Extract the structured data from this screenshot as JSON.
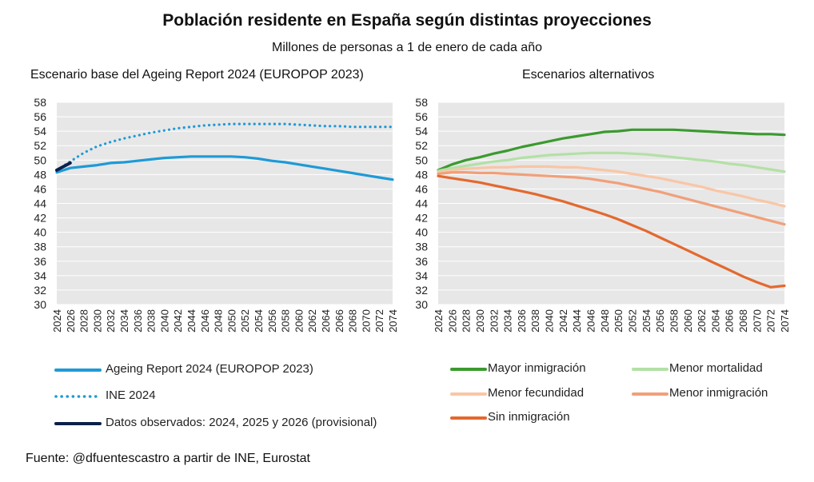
{
  "title": "Población residente en España según distintas proyecciones",
  "subtitle": "Millones de personas a 1 de enero de cada año",
  "source": "Fuente: @dfuentescastro a partir de INE, Eurostat",
  "chart_data": [
    {
      "type": "line",
      "title": "Escenario base del Ageing Report 2024 (EUROPOP 2023)",
      "ylim": [
        30,
        58
      ],
      "yticks": [
        30,
        32,
        34,
        36,
        38,
        40,
        42,
        44,
        46,
        48,
        50,
        52,
        54,
        56,
        58
      ],
      "xlim": [
        2024,
        2074
      ],
      "xticks": [
        2024,
        2026,
        2028,
        2030,
        2032,
        2034,
        2036,
        2038,
        2040,
        2042,
        2044,
        2046,
        2048,
        2050,
        2052,
        2054,
        2056,
        2058,
        2060,
        2062,
        2064,
        2066,
        2068,
        2070,
        2072,
        2074
      ],
      "grid": true,
      "legend": "bottom",
      "series": [
        {
          "name": "Ageing Report 2024 (EUROPOP 2023)",
          "color": "#1f9ad6",
          "style": "solid",
          "x": [
            2024,
            2026,
            2028,
            2030,
            2032,
            2034,
            2036,
            2038,
            2040,
            2042,
            2044,
            2046,
            2048,
            2050,
            2052,
            2054,
            2056,
            2058,
            2060,
            2062,
            2064,
            2066,
            2068,
            2070,
            2072,
            2074
          ],
          "y": [
            48.3,
            48.9,
            49.1,
            49.3,
            49.6,
            49.7,
            49.9,
            50.1,
            50.3,
            50.4,
            50.5,
            50.5,
            50.5,
            50.5,
            50.4,
            50.2,
            49.9,
            49.7,
            49.4,
            49.1,
            48.8,
            48.5,
            48.2,
            47.9,
            47.6,
            47.3
          ]
        },
        {
          "name": "INE 2024",
          "color": "#1f9ad6",
          "style": "dotted",
          "x": [
            2024,
            2026,
            2028,
            2030,
            2032,
            2034,
            2036,
            2038,
            2040,
            2042,
            2044,
            2046,
            2048,
            2050,
            2052,
            2054,
            2056,
            2058,
            2060,
            2062,
            2064,
            2066,
            2068,
            2070,
            2072,
            2074
          ],
          "y": [
            48.6,
            49.8,
            51.0,
            51.9,
            52.5,
            53.0,
            53.4,
            53.8,
            54.1,
            54.4,
            54.6,
            54.8,
            54.9,
            55.0,
            55.0,
            55.0,
            55.0,
            55.0,
            54.9,
            54.8,
            54.7,
            54.7,
            54.6,
            54.6,
            54.6,
            54.6
          ]
        },
        {
          "name": "Datos observados: 2024, 2025 y 2026 (provisional)",
          "color": "#0c1f4a",
          "style": "solid-thick",
          "x": [
            2024,
            2025,
            2026
          ],
          "y": [
            48.6,
            49.1,
            49.6
          ]
        }
      ]
    },
    {
      "type": "line",
      "title": "Escenarios alternativos",
      "ylim": [
        30,
        58
      ],
      "yticks": [
        30,
        32,
        34,
        36,
        38,
        40,
        42,
        44,
        46,
        48,
        50,
        52,
        54,
        56,
        58
      ],
      "xlim": [
        2024,
        2074
      ],
      "xticks": [
        2024,
        2026,
        2028,
        2030,
        2032,
        2034,
        2036,
        2038,
        2040,
        2042,
        2044,
        2046,
        2048,
        2050,
        2052,
        2054,
        2056,
        2058,
        2060,
        2062,
        2064,
        2066,
        2068,
        2070,
        2072,
        2074
      ],
      "grid": true,
      "legend": "bottom",
      "series": [
        {
          "name": "Mayor inmigración",
          "color": "#3b9a2f",
          "style": "solid",
          "x": [
            2024,
            2026,
            2028,
            2030,
            2032,
            2034,
            2036,
            2038,
            2040,
            2042,
            2044,
            2046,
            2048,
            2050,
            2052,
            2054,
            2056,
            2058,
            2060,
            2062,
            2064,
            2066,
            2068,
            2070,
            2072,
            2074
          ],
          "y": [
            48.6,
            49.4,
            50.0,
            50.4,
            50.9,
            51.3,
            51.8,
            52.2,
            52.6,
            53.0,
            53.3,
            53.6,
            53.9,
            54.0,
            54.2,
            54.2,
            54.2,
            54.2,
            54.1,
            54.0,
            53.9,
            53.8,
            53.7,
            53.6,
            53.6,
            53.5
          ]
        },
        {
          "name": "Menor mortalidad",
          "color": "#b3e0a6",
          "style": "solid",
          "x": [
            2024,
            2026,
            2028,
            2030,
            2032,
            2034,
            2036,
            2038,
            2040,
            2042,
            2044,
            2046,
            2048,
            2050,
            2052,
            2054,
            2056,
            2058,
            2060,
            2062,
            2064,
            2066,
            2068,
            2070,
            2072,
            2074
          ],
          "y": [
            48.5,
            48.9,
            49.2,
            49.5,
            49.8,
            50.0,
            50.3,
            50.5,
            50.7,
            50.8,
            50.9,
            51.0,
            51.0,
            51.0,
            50.9,
            50.8,
            50.6,
            50.4,
            50.2,
            50.0,
            49.8,
            49.5,
            49.3,
            49.0,
            48.7,
            48.4
          ]
        },
        {
          "name": "Menor fecundidad",
          "color": "#f9c6a6",
          "style": "solid",
          "x": [
            2024,
            2026,
            2028,
            2030,
            2032,
            2034,
            2036,
            2038,
            2040,
            2042,
            2044,
            2046,
            2048,
            2050,
            2052,
            2054,
            2056,
            2058,
            2060,
            2062,
            2064,
            2066,
            2068,
            2070,
            2072,
            2074
          ],
          "y": [
            48.3,
            48.6,
            48.8,
            48.9,
            49.0,
            49.0,
            49.1,
            49.1,
            49.1,
            49.0,
            49.0,
            48.8,
            48.6,
            48.4,
            48.1,
            47.8,
            47.5,
            47.1,
            46.7,
            46.3,
            45.8,
            45.4,
            45.0,
            44.5,
            44.1,
            43.6
          ]
        },
        {
          "name": "Menor inmigración",
          "color": "#f0a07a",
          "style": "solid",
          "x": [
            2024,
            2026,
            2028,
            2030,
            2032,
            2034,
            2036,
            2038,
            2040,
            2042,
            2044,
            2046,
            2048,
            2050,
            2052,
            2054,
            2056,
            2058,
            2060,
            2062,
            2064,
            2066,
            2068,
            2070,
            2072,
            2074
          ],
          "y": [
            48.1,
            48.3,
            48.3,
            48.2,
            48.2,
            48.1,
            48.0,
            47.9,
            47.8,
            47.7,
            47.6,
            47.4,
            47.1,
            46.8,
            46.4,
            46.0,
            45.6,
            45.1,
            44.6,
            44.1,
            43.6,
            43.1,
            42.6,
            42.1,
            41.6,
            41.1
          ]
        },
        {
          "name": "Sin inmigración",
          "color": "#e3692e",
          "style": "solid",
          "x": [
            2024,
            2026,
            2028,
            2030,
            2032,
            2034,
            2036,
            2038,
            2040,
            2042,
            2044,
            2046,
            2048,
            2050,
            2052,
            2054,
            2056,
            2058,
            2060,
            2062,
            2064,
            2066,
            2068,
            2070,
            2072,
            2074
          ],
          "y": [
            47.8,
            47.5,
            47.2,
            46.9,
            46.5,
            46.1,
            45.7,
            45.3,
            44.8,
            44.3,
            43.7,
            43.1,
            42.5,
            41.8,
            41.0,
            40.2,
            39.3,
            38.4,
            37.5,
            36.6,
            35.7,
            34.8,
            33.9,
            33.1,
            32.4,
            32.6
          ]
        }
      ]
    }
  ]
}
